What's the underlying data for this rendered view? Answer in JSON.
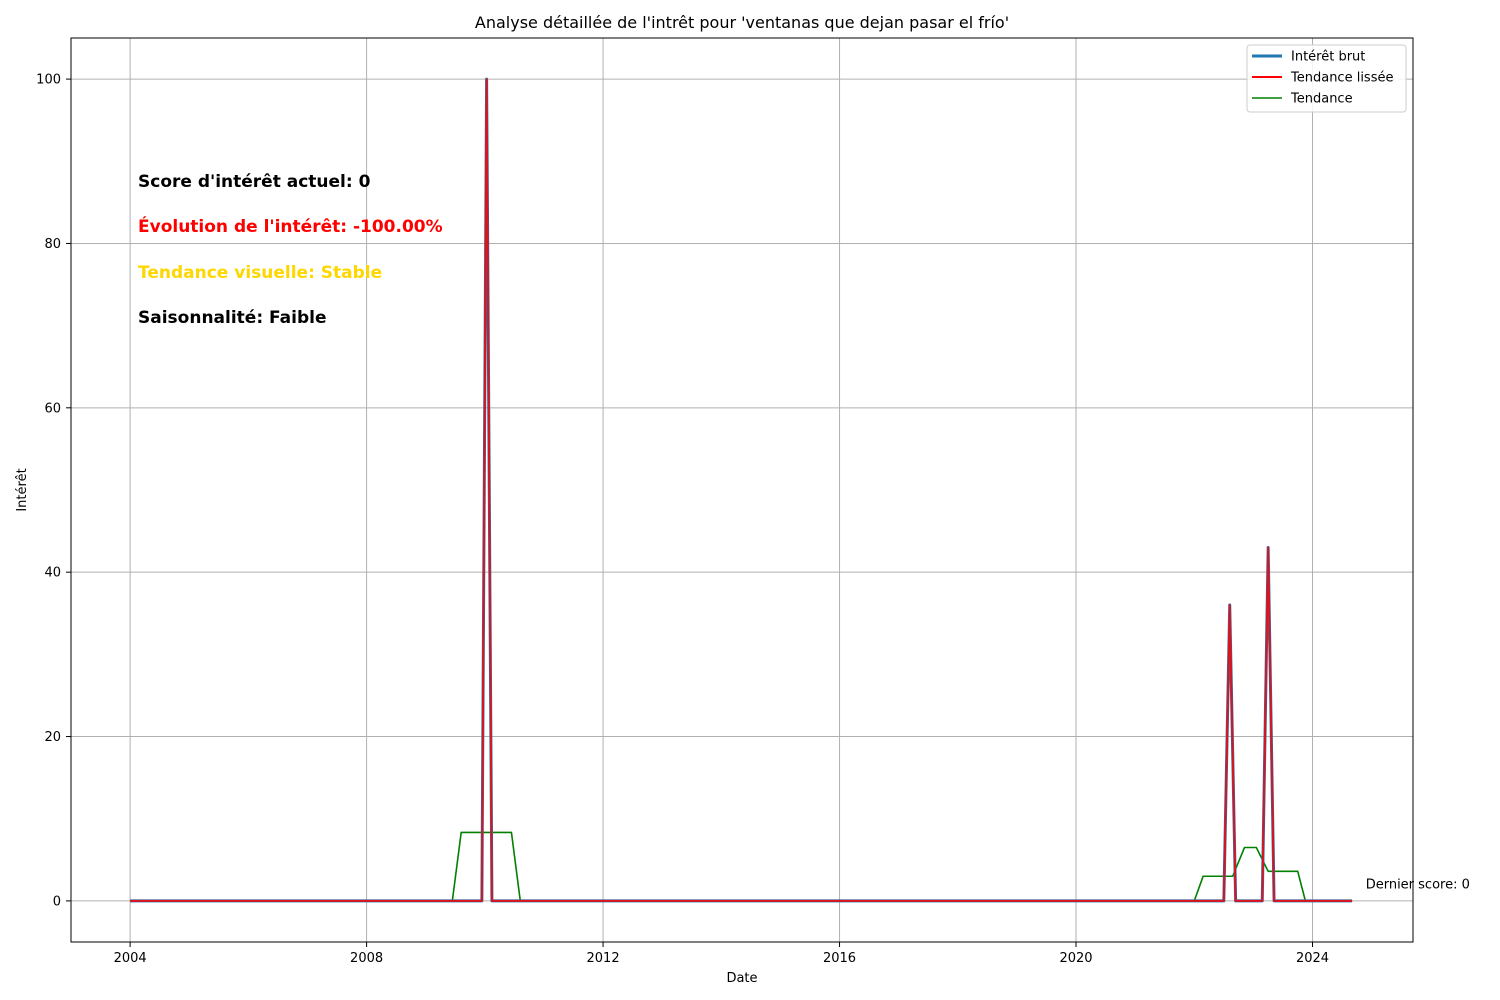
{
  "chart_data": {
    "type": "line",
    "title": "Analyse détaillée de l'intrêt pour 'ventanas que dejan pasar el frío'",
    "xlabel": "Date",
    "ylabel": "Intérêt",
    "xlim": [
      2003.0,
      2025.7
    ],
    "ylim": [
      -5,
      105
    ],
    "x_ticks": [
      2004,
      2008,
      2012,
      2016,
      2020,
      2024
    ],
    "x_tick_labels": [
      "2004",
      "2008",
      "2012",
      "2016",
      "2020",
      "2024"
    ],
    "y_ticks": [
      0,
      20,
      40,
      60,
      80,
      100
    ],
    "y_tick_labels": [
      "0",
      "20",
      "40",
      "60",
      "80",
      "100"
    ],
    "grid": true,
    "legend_position": "top-right",
    "series": [
      {
        "name": "Intérêt brut",
        "color": "#1f77b4",
        "points": [
          [
            2004.0,
            0
          ],
          [
            2009.95,
            0
          ],
          [
            2010.03,
            100
          ],
          [
            2010.12,
            0
          ],
          [
            2022.5,
            0
          ],
          [
            2022.6,
            36
          ],
          [
            2022.7,
            0
          ],
          [
            2023.15,
            0
          ],
          [
            2023.25,
            43
          ],
          [
            2023.35,
            0
          ],
          [
            2024.67,
            0
          ]
        ]
      },
      {
        "name": "Tendance lissée",
        "color": "#ff0000",
        "points": [
          [
            2004.0,
            0
          ],
          [
            2009.95,
            0
          ],
          [
            2010.03,
            100
          ],
          [
            2010.12,
            0
          ],
          [
            2022.5,
            0
          ],
          [
            2022.6,
            36
          ],
          [
            2022.7,
            0
          ],
          [
            2023.15,
            0
          ],
          [
            2023.25,
            43
          ],
          [
            2023.35,
            0
          ],
          [
            2024.67,
            0
          ]
        ]
      },
      {
        "name": "Tendance",
        "color": "#008000",
        "points": [
          [
            2004.5,
            0
          ],
          [
            2009.45,
            0
          ],
          [
            2009.6,
            8.33
          ],
          [
            2010.45,
            8.33
          ],
          [
            2010.6,
            0
          ],
          [
            2022.0,
            0
          ],
          [
            2022.15,
            3
          ],
          [
            2022.65,
            3
          ],
          [
            2022.85,
            6.5
          ],
          [
            2023.05,
            6.5
          ],
          [
            2023.25,
            3.6
          ],
          [
            2023.75,
            3.6
          ],
          [
            2023.88,
            0
          ],
          [
            2024.2,
            0
          ]
        ]
      }
    ],
    "annotations": [
      {
        "text": "Dernier score: 0",
        "x": 2024.9,
        "y": 2
      }
    ]
  },
  "info_lines": [
    {
      "text": "Score d'intérêt actuel: 0",
      "color": "#000000"
    },
    {
      "text": "Évolution de l'intérêt: -100.00%",
      "color": "#ff0000"
    },
    {
      "text": "Tendance visuelle: Stable",
      "color": "#ffd700"
    },
    {
      "text": "Saisonnalité: Faible",
      "color": "#000000"
    }
  ]
}
